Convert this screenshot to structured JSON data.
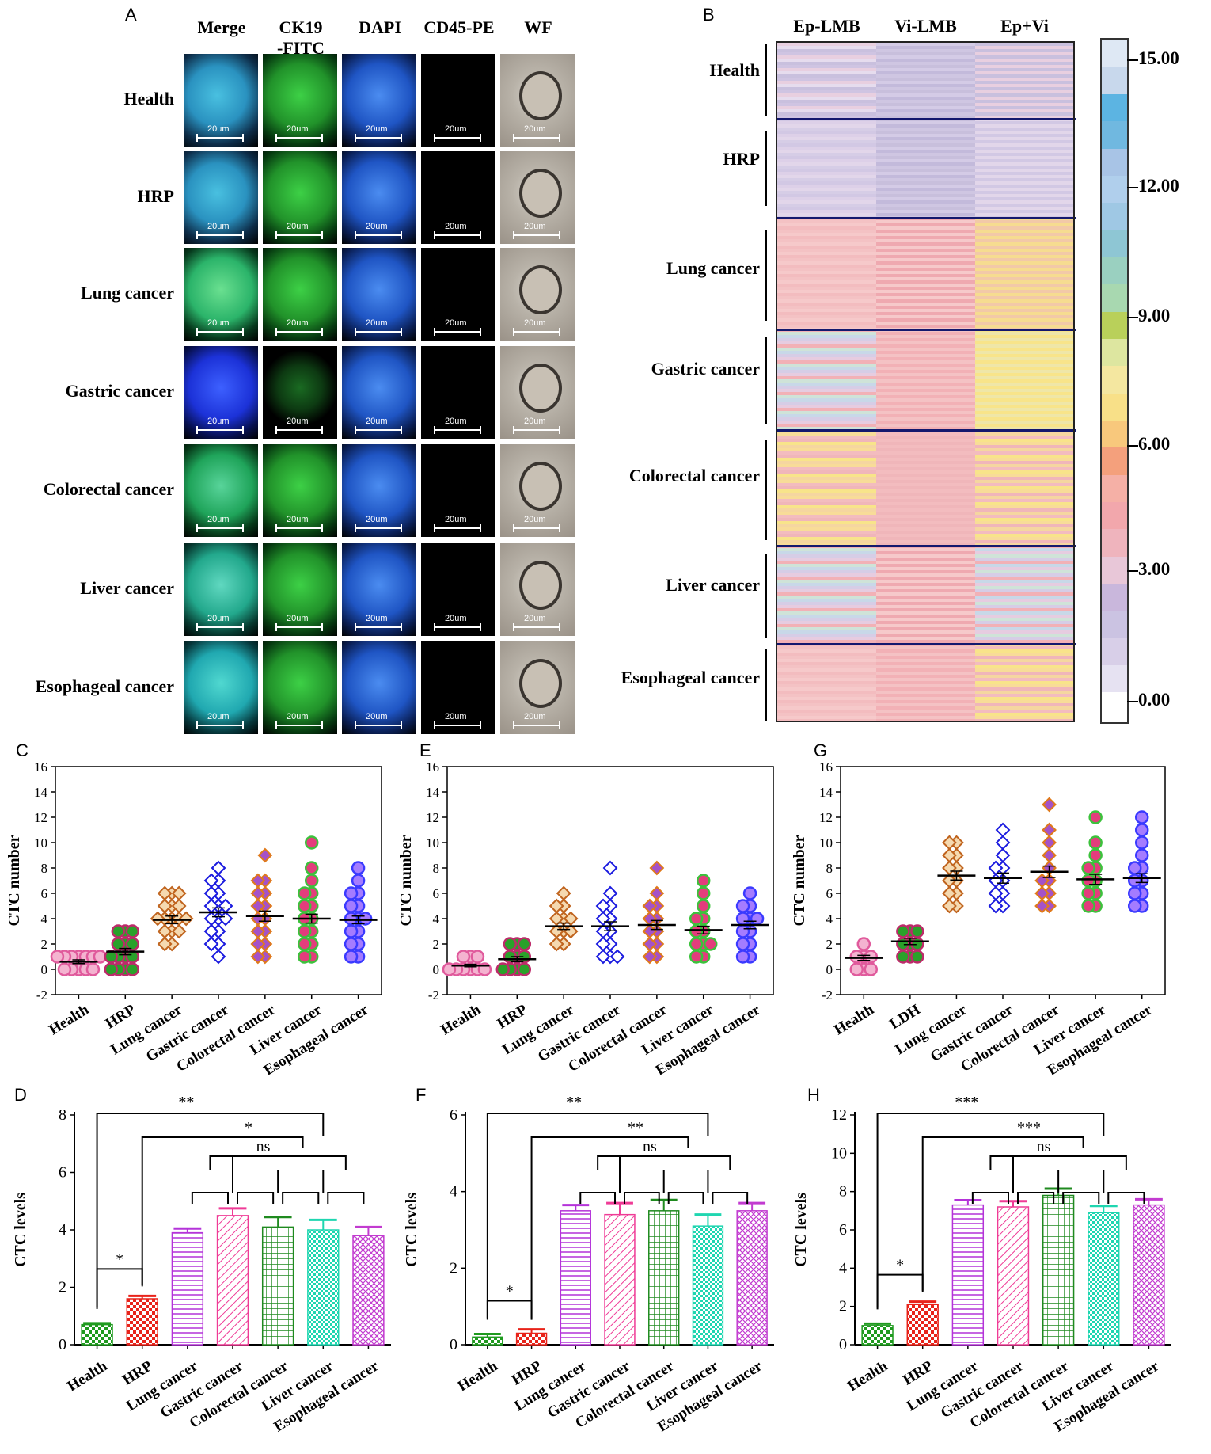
{
  "panel_a": {
    "letter": "A",
    "columns": [
      "Merge",
      "CK19\n-FITC",
      "DAPI",
      "CD45-PE",
      "WF"
    ],
    "rows": [
      "Health",
      "HRP",
      "Lung cancer",
      "Gastric cancer",
      "Colorectal cancer",
      "Liver cancer",
      "Esophageal cancer"
    ],
    "scale_label": "20um"
  },
  "panel_b": {
    "letter": "B",
    "columns": [
      "Ep-LMB",
      "Vi-LMB",
      "Ep+Vi"
    ],
    "rows": [
      "Health",
      "HRP",
      "Lung cancer",
      "Gastric cancer",
      "Colorectal cancer",
      "Liver cancer",
      "Esophageal cancer"
    ],
    "colorbar_ticks": [
      "15.00",
      "12.00",
      "9.00",
      "6.00",
      "3.00",
      "0.00"
    ],
    "colorbar_range": [
      0,
      15
    ]
  },
  "colors": {
    "pink_marker": "#e05a9c",
    "green_marker": "#2aa12a",
    "orange_marker": "#c0641e",
    "blue_marker": "#1a1adf",
    "purple_marker": "#7a3cff",
    "bar_health": "#1f9a1f",
    "bar_hrp": "#e8231a",
    "bar_lung": "#b433d9",
    "bar_gastric": "#ef3b96",
    "bar_colorectal": "#1f8a1f",
    "bar_liver": "#1fd6b0",
    "bar_esophageal": "#c23bd0"
  },
  "chart_data": [
    {
      "panel": "C",
      "type": "scatter",
      "ylabel": "CTC number",
      "ylim": [
        -2,
        16
      ],
      "yticks": [
        "16",
        "14",
        "12",
        "10",
        "8",
        "6",
        "4",
        "2",
        "0",
        "-2"
      ],
      "categories": [
        "Health",
        "HRP",
        "Lung cancer",
        "Gastric cancer",
        "Colorectal cancer",
        "Liver cancer",
        "Esophageal cancer"
      ],
      "means": [
        0.6,
        1.4,
        3.9,
        4.5,
        4.2,
        4.0,
        3.9
      ],
      "sem": [
        0.15,
        0.25,
        0.3,
        0.35,
        0.4,
        0.35,
        0.3
      ],
      "points": [
        [
          0,
          0,
          0,
          0,
          0,
          1,
          1,
          1,
          1,
          1,
          1,
          1
        ],
        [
          0,
          0,
          0,
          0,
          1,
          1,
          1,
          1,
          2,
          2,
          2,
          3,
          3,
          3
        ],
        [
          2,
          2,
          3,
          3,
          3,
          4,
          4,
          4,
          4,
          4,
          5,
          5,
          5,
          6,
          6,
          6
        ],
        [
          1,
          2,
          2,
          3,
          3,
          4,
          4,
          4,
          5,
          5,
          5,
          6,
          6,
          7,
          7,
          8
        ],
        [
          1,
          1,
          2,
          2,
          3,
          3,
          4,
          4,
          5,
          5,
          6,
          6,
          7,
          7,
          9
        ],
        [
          1,
          1,
          2,
          2,
          3,
          3,
          4,
          4,
          5,
          5,
          6,
          6,
          7,
          8,
          10
        ],
        [
          1,
          1,
          2,
          2,
          3,
          3,
          4,
          4,
          4,
          5,
          5,
          6,
          6,
          7,
          8
        ]
      ]
    },
    {
      "panel": "E",
      "type": "scatter",
      "ylabel": "CTC number",
      "ylim": [
        -2,
        16
      ],
      "yticks": [
        "16",
        "14",
        "12",
        "10",
        "8",
        "6",
        "4",
        "2",
        "0",
        "-2"
      ],
      "categories": [
        "Health",
        "HRP",
        "Lung cancer",
        "Gastric cancer",
        "Colorectal cancer",
        "Liver cancer",
        "Esophageal cancer"
      ],
      "means": [
        0.3,
        0.8,
        3.4,
        3.4,
        3.5,
        3.1,
        3.5
      ],
      "sem": [
        0.1,
        0.2,
        0.25,
        0.35,
        0.35,
        0.3,
        0.3
      ],
      "points": [
        [
          0,
          0,
          0,
          0,
          0,
          0,
          1,
          1,
          1
        ],
        [
          0,
          0,
          0,
          0,
          1,
          1,
          1,
          2,
          2,
          2
        ],
        [
          2,
          2,
          3,
          3,
          3,
          4,
          4,
          4,
          5,
          5,
          6
        ],
        [
          1,
          1,
          1,
          2,
          2,
          3,
          3,
          4,
          4,
          5,
          5,
          6,
          8
        ],
        [
          1,
          1,
          2,
          2,
          3,
          3,
          4,
          4,
          5,
          5,
          6,
          8
        ],
        [
          1,
          1,
          2,
          2,
          2,
          3,
          3,
          4,
          4,
          5,
          6,
          7
        ],
        [
          1,
          1,
          2,
          2,
          3,
          3,
          4,
          4,
          4,
          5,
          5,
          6
        ]
      ]
    },
    {
      "panel": "G",
      "type": "scatter",
      "ylabel": "CTC number",
      "ylim": [
        -2,
        16
      ],
      "yticks": [
        "16",
        "14",
        "12",
        "10",
        "8",
        "6",
        "4",
        "2",
        "0",
        "-2"
      ],
      "categories": [
        "Health",
        "LDH",
        "Lung cancer",
        "Gastric cancer",
        "Colorectal cancer",
        "Liver cancer",
        "Esophageal cancer"
      ],
      "means": [
        0.9,
        2.2,
        7.4,
        7.2,
        7.7,
        7.1,
        7.2
      ],
      "sem": [
        0.2,
        0.25,
        0.35,
        0.4,
        0.45,
        0.4,
        0.35
      ],
      "points": [
        [
          0,
          0,
          0,
          1,
          1,
          1,
          2
        ],
        [
          1,
          1,
          1,
          2,
          2,
          2,
          3,
          3,
          3
        ],
        [
          5,
          5,
          6,
          6,
          7,
          7,
          8,
          8,
          9,
          9,
          10,
          10
        ],
        [
          5,
          5,
          6,
          6,
          7,
          7,
          8,
          8,
          9,
          10,
          11
        ],
        [
          5,
          5,
          6,
          6,
          7,
          7,
          8,
          9,
          10,
          11,
          13
        ],
        [
          5,
          5,
          6,
          6,
          7,
          7,
          8,
          8,
          9,
          10,
          12
        ],
        [
          5,
          5,
          6,
          6,
          7,
          7,
          8,
          8,
          9,
          10,
          11,
          12
        ]
      ]
    },
    {
      "panel": "D",
      "type": "bar",
      "ylabel": "CTC levels",
      "ylim": [
        0,
        8
      ],
      "yticks": [
        "8",
        "6",
        "4",
        "2",
        "0"
      ],
      "categories": [
        "Health",
        "HRP",
        "Lung cancer",
        "Gastric cancer",
        "Colorectal cancer",
        "Liver cancer",
        "Esophageal cancer"
      ],
      "values": [
        0.7,
        1.6,
        3.9,
        4.5,
        4.1,
        4.0,
        3.8
      ],
      "err": [
        0.05,
        0.1,
        0.15,
        0.25,
        0.35,
        0.35,
        0.3
      ],
      "sig": {
        "pair": "*",
        "outer": "**",
        "second": "*",
        "ns": "ns"
      }
    },
    {
      "panel": "F",
      "type": "bar",
      "ylabel": "CTC levels",
      "ylim": [
        0,
        6
      ],
      "yticks": [
        "6",
        "4",
        "2",
        "0"
      ],
      "categories": [
        "Health",
        "HRP",
        "Lung cancer",
        "Gastric cancer",
        "Colorectal cancer",
        "Liver cancer",
        "Esophageal cancer"
      ],
      "values": [
        0.2,
        0.3,
        3.5,
        3.4,
        3.5,
        3.1,
        3.5
      ],
      "err": [
        0.08,
        0.1,
        0.15,
        0.3,
        0.28,
        0.3,
        0.2
      ],
      "sig": {
        "pair": "*",
        "outer": "**",
        "second": "**",
        "ns": "ns"
      }
    },
    {
      "panel": "H",
      "type": "bar",
      "ylabel": "CTC levels",
      "ylim": [
        0,
        12
      ],
      "yticks": [
        "12",
        "10",
        "8",
        "6",
        "4",
        "2",
        "0"
      ],
      "categories": [
        "Health",
        "HRP",
        "Lung cancer",
        "Gastric cancer",
        "Colorectal cancer",
        "Liver cancer",
        "Esophageal cancer"
      ],
      "values": [
        1.0,
        2.1,
        7.3,
        7.2,
        7.8,
        6.9,
        7.3
      ],
      "err": [
        0.1,
        0.15,
        0.25,
        0.3,
        0.35,
        0.35,
        0.3
      ],
      "sig": {
        "pair": "*",
        "outer": "***",
        "second": "***",
        "ns": "ns"
      }
    }
  ]
}
